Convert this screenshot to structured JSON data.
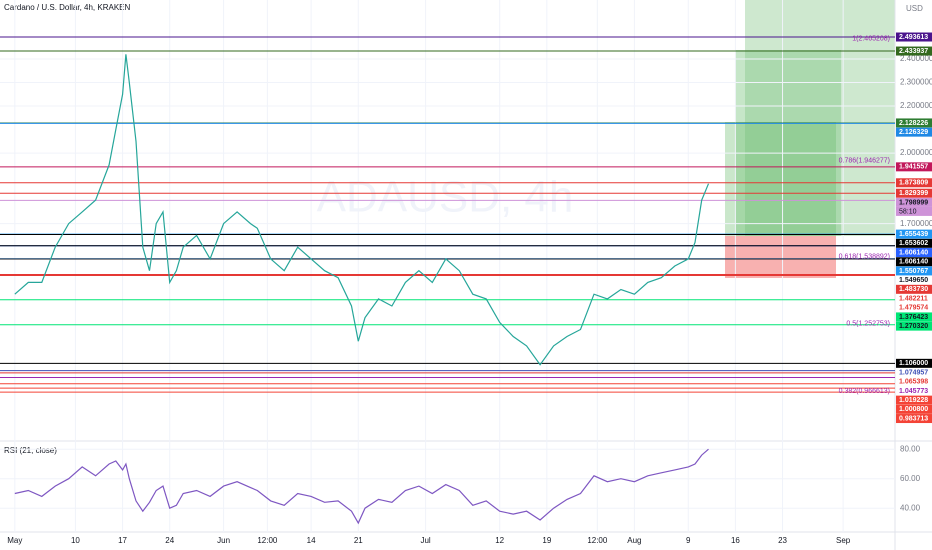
{
  "chart_data": [
    {
      "type": "line",
      "title": "Cardano / U.S. Dollar, 4h, KRAKEN",
      "watermark": "ADAUSD, 4h",
      "axis_unit": "USD",
      "color": "#26a69a",
      "x": [
        0,
        2,
        4,
        6,
        8,
        10,
        12,
        14,
        15,
        16,
        16.5,
        17,
        18,
        19,
        20,
        21,
        22,
        23,
        24,
        25,
        27,
        29,
        31,
        33,
        35,
        36,
        38,
        40,
        42,
        44,
        46,
        48,
        50,
        51,
        52,
        54,
        56,
        58,
        60,
        62,
        64,
        66,
        68,
        70,
        72,
        74,
        76,
        78,
        80,
        82,
        84,
        86,
        88,
        90,
        92,
        94,
        96,
        98,
        100,
        101,
        102,
        103
      ],
      "values": [
        1.4,
        1.45,
        1.45,
        1.6,
        1.7,
        1.75,
        1.8,
        1.95,
        2.1,
        2.25,
        2.42,
        2.3,
        2.05,
        1.6,
        1.5,
        1.7,
        1.75,
        1.45,
        1.5,
        1.6,
        1.65,
        1.55,
        1.7,
        1.75,
        1.7,
        1.68,
        1.55,
        1.5,
        1.6,
        1.55,
        1.5,
        1.47,
        1.35,
        1.2,
        1.3,
        1.38,
        1.35,
        1.45,
        1.5,
        1.45,
        1.55,
        1.5,
        1.4,
        1.38,
        1.28,
        1.22,
        1.18,
        1.1,
        1.18,
        1.22,
        1.25,
        1.4,
        1.38,
        1.42,
        1.4,
        1.45,
        1.47,
        1.52,
        1.55,
        1.62,
        1.8,
        1.87
      ],
      "xlim": [
        -2.2,
        130.7
      ],
      "ylim": [
        0.78,
        2.651
      ],
      "yticks": [
        {
          "value": 2.4,
          "label": "2.400000"
        },
        {
          "value": 2.3,
          "label": "2.300000"
        },
        {
          "value": 2.2,
          "label": "2.200000"
        },
        {
          "value": 2.0,
          "label": "2.000000"
        },
        {
          "value": 1.7,
          "label": "1.700000"
        }
      ],
      "xticks": [
        {
          "value": 0,
          "label": "May"
        },
        {
          "value": 9,
          "label": "10"
        },
        {
          "value": 16,
          "label": "17"
        },
        {
          "value": 23,
          "label": "24"
        },
        {
          "value": 31,
          "label": "Jun"
        },
        {
          "value": 37.5,
          "label": "12:00"
        },
        {
          "value": 44,
          "label": "14"
        },
        {
          "value": 51,
          "label": "21"
        },
        {
          "value": 61,
          "label": "Jul"
        },
        {
          "value": 72,
          "label": "12"
        },
        {
          "value": 79,
          "label": "19"
        },
        {
          "value": 86.5,
          "label": "12:00"
        },
        {
          "value": 92,
          "label": "Aug"
        },
        {
          "value": 100,
          "label": "9"
        },
        {
          "value": 107,
          "label": "16"
        },
        {
          "value": 114,
          "label": "23"
        },
        {
          "value": 123,
          "label": "Sep"
        }
      ],
      "countdown": "58:10",
      "levels": [
        {
          "value": 2.493613,
          "label": "2.493613",
          "color": "#4a148c",
          "text_color": "#ffffff"
        },
        {
          "value": 2.433937,
          "label": "2.433937",
          "color": "#33691e",
          "text_color": "#ffffff"
        },
        {
          "value": 2.128226,
          "label": "2.128226",
          "color": "#2e7d32",
          "text_color": "#ffffff"
        },
        {
          "value": 2.126329,
          "label": "2.126329",
          "color": "#1e88e5",
          "text_color": "#ffffff"
        },
        {
          "value": 1.941557,
          "label": "1.941557",
          "color": "#c2185b",
          "text_color": "#ffffff"
        },
        {
          "value": 1.873809,
          "label": "1.873809",
          "color": "#e53935",
          "text_color": "#ffffff"
        },
        {
          "value": 1.829399,
          "label": "1.829399",
          "color": "#e53935",
          "text_color": "#ffffff"
        },
        {
          "value": 1.798999,
          "label": "1.798999",
          "color": "#ce93d8",
          "text_color": "#131722"
        },
        {
          "value": 1.655439,
          "label": "1.655439",
          "color": "#2196f3",
          "text_color": "#ffffff"
        },
        {
          "value": 1.653602,
          "label": "1.653602",
          "color": "#000000",
          "text_color": "#ffffff"
        },
        {
          "value": 1.60614,
          "label": "1.606140",
          "color": "#2962ff",
          "text_color": "#ffffff"
        },
        {
          "value": 1.60614,
          "label": "1.606140",
          "color": "#000000",
          "text_color": "#ffffff"
        },
        {
          "value": 1.550767,
          "label": "1.550767",
          "color": "#2196f3",
          "text_color": "#ffffff"
        },
        {
          "value": 1.54965,
          "label": "1.549650",
          "color": "#ffffff",
          "text_color": "#131722"
        },
        {
          "value": 1.48373,
          "label": "1.483730",
          "color": "#e53935",
          "text_color": "#ffffff"
        },
        {
          "value": 1.482211,
          "label": "1.482211",
          "color": "#ffffff",
          "text_color": "#e53935"
        },
        {
          "value": 1.479574,
          "label": "1.479574",
          "color": "#ffffff",
          "text_color": "#e53935"
        },
        {
          "value": 1.376423,
          "label": "1.376423",
          "color": "#00e676",
          "text_color": "#131722"
        },
        {
          "value": 1.27032,
          "label": "1.270320",
          "color": "#00e676",
          "text_color": "#131722"
        },
        {
          "value": 1.106,
          "label": "1.106000",
          "color": "#000000",
          "text_color": "#ffffff"
        },
        {
          "value": 1.074957,
          "label": "1.074957",
          "color": "#ffffff",
          "text_color": "#3f51b5"
        },
        {
          "value": 1.065398,
          "label": "1.065398",
          "color": "#ffffff",
          "text_color": "#e53935"
        },
        {
          "value": 1.045773,
          "label": "1.045773",
          "color": "#ffffff",
          "text_color": "#9c27b0"
        },
        {
          "value": 1.019228,
          "label": "1.019228",
          "color": "#f44336",
          "text_color": "#ffffff"
        },
        {
          "value": 1.0008,
          "label": "1.000800",
          "color": "#f44336",
          "text_color": "#ffffff"
        },
        {
          "value": 0.983713,
          "label": "0.983713",
          "color": "#f44336",
          "text_color": "#ffffff"
        }
      ],
      "annotations": [
        {
          "value": 2.465208,
          "label": "1(2.465208)"
        },
        {
          "value": 1.946277,
          "label": "0.786(1.946277)"
        },
        {
          "value": 1.538892,
          "label": "0.618(1.538892)"
        },
        {
          "value": 1.252753,
          "label": "0.5(1.252753)"
        },
        {
          "value": 0.966613,
          "label": "0.382(0.966613)"
        }
      ]
    },
    {
      "type": "line",
      "title": "RSI (21, close)",
      "color": "#7e57c2",
      "values": [
        50,
        52,
        48,
        55,
        60,
        68,
        62,
        70,
        72,
        66,
        70,
        60,
        45,
        38,
        44,
        52,
        55,
        40,
        42,
        50,
        52,
        48,
        55,
        58,
        54,
        52,
        45,
        42,
        50,
        48,
        44,
        45,
        38,
        30,
        40,
        46,
        44,
        52,
        55,
        50,
        56,
        52,
        42,
        45,
        38,
        36,
        38,
        32,
        40,
        46,
        50,
        62,
        58,
        60,
        58,
        62,
        64,
        66,
        68,
        70,
        76,
        80
      ],
      "ylim": [
        23.9,
        84.9
      ],
      "yticks": [
        {
          "value": 80,
          "label": "80.00"
        },
        {
          "value": 60,
          "label": "60.00"
        },
        {
          "value": 40,
          "label": "40.00"
        }
      ]
    }
  ]
}
